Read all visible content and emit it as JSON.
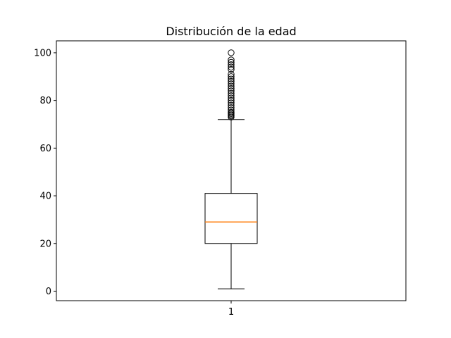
{
  "chart_data": {
    "type": "boxplot",
    "title": "Distribución de la edad",
    "xlabel": "",
    "ylabel": "",
    "categories": [
      "1"
    ],
    "ylim": [
      -4,
      105
    ],
    "yticks": [
      0,
      20,
      40,
      60,
      80,
      100
    ],
    "grid": false,
    "boxes": [
      {
        "category": "1",
        "whisker_low": 1,
        "q1": 20,
        "median": 29,
        "q3": 41,
        "whisker_high": 72,
        "outliers": [
          73,
          73.5,
          74,
          74.5,
          75,
          76,
          77,
          78,
          79,
          80,
          81,
          82,
          83,
          84,
          85,
          86,
          87,
          88,
          89,
          90,
          91,
          93,
          94,
          95,
          96,
          97,
          100
        ]
      }
    ],
    "colors": {
      "box": "#000000",
      "median": "#ff7f0e",
      "outlier": "#000000"
    }
  }
}
